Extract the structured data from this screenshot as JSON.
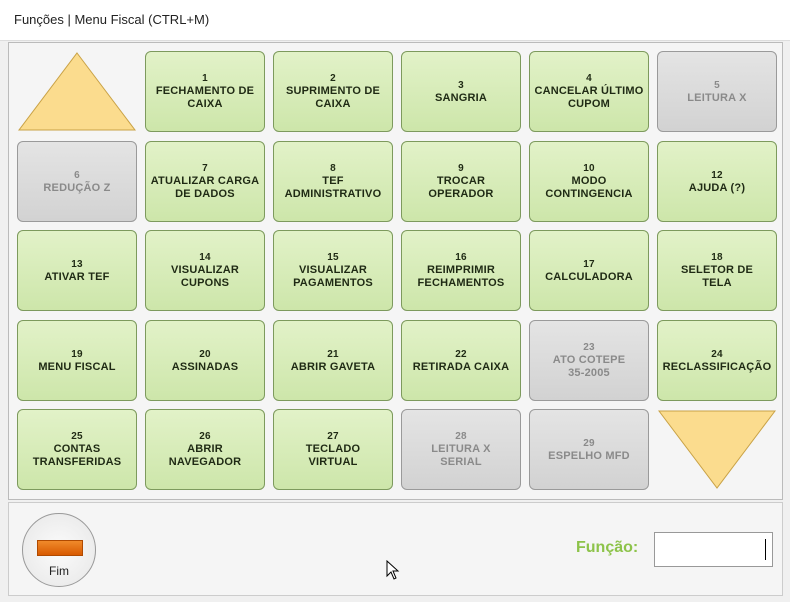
{
  "window": {
    "title": "Funções | Menu Fiscal (CTRL+M)"
  },
  "buttons": [
    {
      "number": 1,
      "lines": [
        "FECHAMENTO DE",
        "CAIXA"
      ],
      "enabled": true
    },
    {
      "number": 2,
      "lines": [
        "SUPRIMENTO DE",
        "CAIXA"
      ],
      "enabled": true
    },
    {
      "number": 3,
      "lines": [
        "SANGRIA"
      ],
      "enabled": true
    },
    {
      "number": 4,
      "lines": [
        "CANCELAR ÚLTIMO",
        "CUPOM"
      ],
      "enabled": true
    },
    {
      "number": 5,
      "lines": [
        "LEITURA X"
      ],
      "enabled": false
    },
    {
      "number": 6,
      "lines": [
        "REDUÇÃO Z"
      ],
      "enabled": false
    },
    {
      "number": 7,
      "lines": [
        "ATUALIZAR CARGA",
        "DE DADOS"
      ],
      "enabled": true
    },
    {
      "number": 8,
      "lines": [
        "TEF",
        "ADMINISTRATIVO"
      ],
      "enabled": true
    },
    {
      "number": 9,
      "lines": [
        "TROCAR",
        "OPERADOR"
      ],
      "enabled": true
    },
    {
      "number": 10,
      "lines": [
        "MODO",
        "CONTINGENCIA"
      ],
      "enabled": true
    },
    {
      "number": 12,
      "lines": [
        "AJUDA (?)"
      ],
      "enabled": true
    },
    {
      "number": 13,
      "lines": [
        "ATIVAR TEF"
      ],
      "enabled": true
    },
    {
      "number": 14,
      "lines": [
        "VISUALIZAR",
        "CUPONS"
      ],
      "enabled": true
    },
    {
      "number": 15,
      "lines": [
        "VISUALIZAR",
        "PAGAMENTOS"
      ],
      "enabled": true
    },
    {
      "number": 16,
      "lines": [
        "REIMPRIMIR",
        "FECHAMENTOS"
      ],
      "enabled": true
    },
    {
      "number": 17,
      "lines": [
        "CALCULADORA"
      ],
      "enabled": true
    },
    {
      "number": 18,
      "lines": [
        "SELETOR DE",
        "TELA"
      ],
      "enabled": true
    },
    {
      "number": 19,
      "lines": [
        "MENU FISCAL"
      ],
      "enabled": true
    },
    {
      "number": 20,
      "lines": [
        "ASSINADAS"
      ],
      "enabled": true
    },
    {
      "number": 21,
      "lines": [
        "ABRIR GAVETA"
      ],
      "enabled": true
    },
    {
      "number": 22,
      "lines": [
        "RETIRADA CAIXA"
      ],
      "enabled": true
    },
    {
      "number": 23,
      "lines": [
        "ATO COTEPE",
        "35-2005"
      ],
      "enabled": false
    },
    {
      "number": 24,
      "lines": [
        "RECLASSIFICAÇÃO"
      ],
      "enabled": true
    },
    {
      "number": 25,
      "lines": [
        "CONTAS",
        "TRANSFERIDAS"
      ],
      "enabled": true
    },
    {
      "number": 26,
      "lines": [
        "ABRIR",
        "NAVEGADOR"
      ],
      "enabled": true
    },
    {
      "number": 27,
      "lines": [
        "TECLADO",
        "VIRTUAL"
      ],
      "enabled": true
    },
    {
      "number": 28,
      "lines": [
        "LEITURA X",
        "SERIAL"
      ],
      "enabled": false
    },
    {
      "number": 29,
      "lines": [
        "ESPELHO MFD"
      ],
      "enabled": false
    }
  ],
  "footer": {
    "exit_label": "Fim",
    "function_label": "Função:"
  }
}
